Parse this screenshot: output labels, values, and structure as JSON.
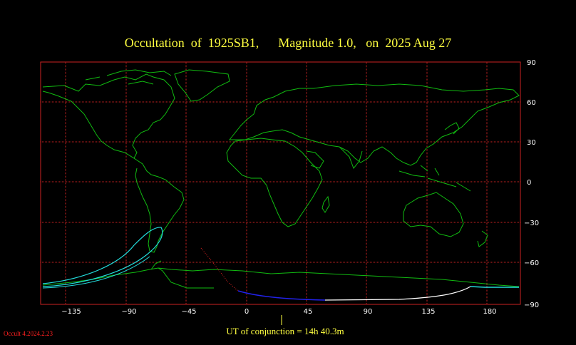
{
  "title": "Occultation  of  1925SB1,      Magnitude 1.0,   on  2025 Aug 27",
  "map": {
    "lon_ticks": [
      "−135",
      "−90",
      "−45",
      "0",
      "45",
      "90",
      "135",
      "180"
    ],
    "lat_ticks": [
      "90",
      "60",
      "30",
      "0",
      "−30",
      "−60",
      "−90"
    ],
    "colors": {
      "grid": "#cc2222",
      "coast": "#11bb11",
      "path_cyan": "#22dddd",
      "path_blue": "#2222ee",
      "path_white": "#ffffff",
      "path_red": "#dd2222",
      "marker": "#ffff40"
    }
  },
  "conjunction_label": "UT of conjunction = 14h 40.3m",
  "version": "Occult 4.2024.2.23"
}
